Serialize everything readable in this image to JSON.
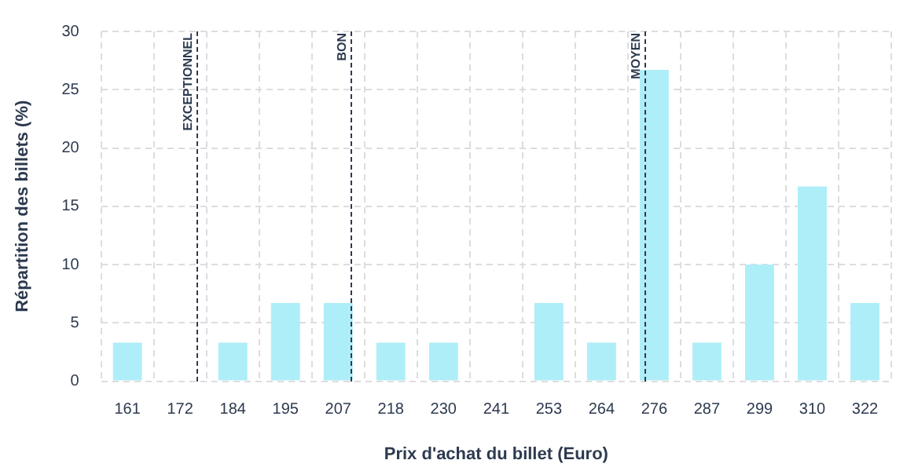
{
  "chart_data": {
    "type": "bar",
    "xlabel": "Prix d'achat du billet (Euro)",
    "ylabel": "Répartition des billets (%)",
    "categories": [
      "161",
      "172",
      "184",
      "195",
      "207",
      "218",
      "230",
      "241",
      "253",
      "264",
      "276",
      "287",
      "299",
      "310",
      "322"
    ],
    "values": [
      3.3,
      0,
      3.3,
      6.7,
      6.7,
      3.3,
      3.3,
      0,
      6.7,
      3.3,
      26.7,
      3.3,
      10,
      16.7,
      6.7
    ],
    "color": "#aeeef8",
    "ylim": [
      0,
      30
    ],
    "yticks": [
      0,
      5,
      10,
      15,
      20,
      25,
      30
    ],
    "grid": true,
    "legend": false,
    "annotations": [
      "EXCEPTIONNEL",
      "BON",
      "MOYEN"
    ]
  }
}
